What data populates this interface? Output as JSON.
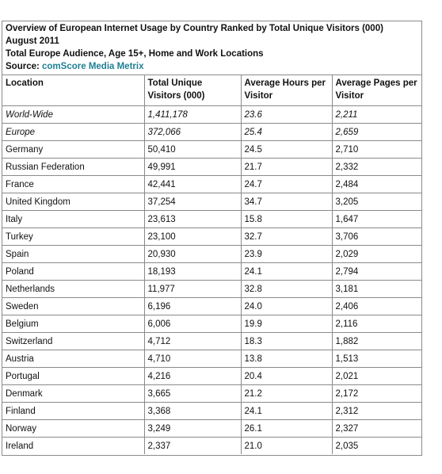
{
  "header": {
    "title": "Overview of European Internet Usage by Country Ranked by Total Unique Visitors (000)",
    "date": "August 2011",
    "audience": "Total Europe Audience, Age 15+, Home and Work Locations",
    "source_label": "Source: ",
    "source_name": "comScore Media Metrix"
  },
  "columns": [
    "Location",
    "Total Unique Visitors (000)",
    "Average Hours per Visitor",
    "Average Pages per Visitor"
  ],
  "rows": [
    {
      "location": "World-Wide",
      "visitors": "1,411,178",
      "hours": "23.6",
      "pages": "2,211",
      "italic": true
    },
    {
      "location": "Europe",
      "visitors": "372,066",
      "hours": "25.4",
      "pages": "2,659",
      "italic": true
    },
    {
      "location": "Germany",
      "visitors": "50,410",
      "hours": "24.5",
      "pages": "2,710"
    },
    {
      "location": "Russian Federation",
      "visitors": "49,991",
      "hours": "21.7",
      "pages": "2,332"
    },
    {
      "location": "France",
      "visitors": "42,441",
      "hours": "24.7",
      "pages": "2,484"
    },
    {
      "location": "United Kingdom",
      "visitors": "37,254",
      "hours": "34.7",
      "pages": "3,205"
    },
    {
      "location": "Italy",
      "visitors": "23,613",
      "hours": "15.8",
      "pages": "1,647"
    },
    {
      "location": "Turkey",
      "visitors": "23,100",
      "hours": "32.7",
      "pages": "3,706"
    },
    {
      "location": "Spain",
      "visitors": "20,930",
      "hours": "23.9",
      "pages": "2,029"
    },
    {
      "location": "Poland",
      "visitors": "18,193",
      "hours": "24.1",
      "pages": "2,794"
    },
    {
      "location": "Netherlands",
      "visitors": "11,977",
      "hours": "32.8",
      "pages": "3,181"
    },
    {
      "location": "Sweden",
      "visitors": "6,196",
      "hours": "24.0",
      "pages": "2,406"
    },
    {
      "location": "Belgium",
      "visitors": "6,006",
      "hours": "19.9",
      "pages": "2,116"
    },
    {
      "location": "Switzerland",
      "visitors": "4,712",
      "hours": "18.3",
      "pages": "1,882"
    },
    {
      "location": "Austria",
      "visitors": "4,710",
      "hours": "13.8",
      "pages": "1,513"
    },
    {
      "location": "Portugal",
      "visitors": "4,216",
      "hours": "20.4",
      "pages": "2,021"
    },
    {
      "location": "Denmark",
      "visitors": "3,665",
      "hours": "21.2",
      "pages": "2,172"
    },
    {
      "location": "Finland",
      "visitors": "3,368",
      "hours": "24.1",
      "pages": "2,312"
    },
    {
      "location": "Norway",
      "visitors": "3,249",
      "hours": "26.1",
      "pages": "2,327"
    },
    {
      "location": "Ireland",
      "visitors": "2,337",
      "hours": "21.0",
      "pages": "2,035"
    }
  ],
  "colors": {
    "border": "#8a8a8a",
    "source_link": "#1f7f94",
    "text": "#111111"
  }
}
